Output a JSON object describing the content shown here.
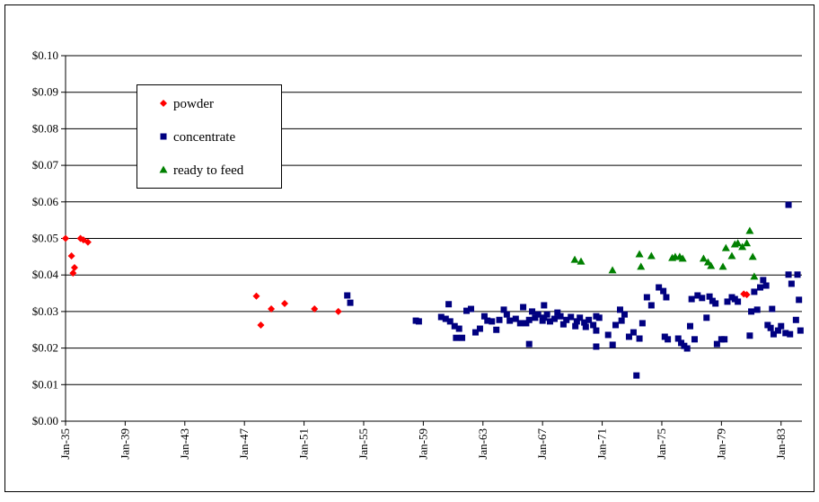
{
  "chart_data": {
    "type": "scatter",
    "xlim": [
      1935,
      1984.4
    ],
    "ylim": [
      0,
      0.1
    ],
    "xticks": [
      {
        "value": 1935,
        "label": "Jan-35"
      },
      {
        "value": 1939,
        "label": "Jan-39"
      },
      {
        "value": 1943,
        "label": "Jan-43"
      },
      {
        "value": 1947,
        "label": "Jan-47"
      },
      {
        "value": 1951,
        "label": "Jan-51"
      },
      {
        "value": 1955,
        "label": "Jan-55"
      },
      {
        "value": 1959,
        "label": "Jan-59"
      },
      {
        "value": 1963,
        "label": "Jan-63"
      },
      {
        "value": 1967,
        "label": "Jan-67"
      },
      {
        "value": 1971,
        "label": "Jan-71"
      },
      {
        "value": 1975,
        "label": "Jan-75"
      },
      {
        "value": 1979,
        "label": "Jan-79"
      },
      {
        "value": 1983,
        "label": "Jan-83"
      }
    ],
    "yticks": [
      {
        "value": 0,
        "label": "$0.00"
      },
      {
        "value": 0.01,
        "label": "$0.01"
      },
      {
        "value": 0.02,
        "label": "$0.02"
      },
      {
        "value": 0.03,
        "label": "$0.03"
      },
      {
        "value": 0.04,
        "label": "$0.04"
      },
      {
        "value": 0.05,
        "label": "$0.05"
      },
      {
        "value": 0.06,
        "label": "$0.06"
      },
      {
        "value": 0.07,
        "label": "$0.07"
      },
      {
        "value": 0.08,
        "label": "$0.08"
      },
      {
        "value": 0.09,
        "label": "$0.09"
      },
      {
        "value": 0.1,
        "label": "$0.10"
      }
    ],
    "grid": true,
    "legend": "upper left",
    "series": [
      {
        "name": "powder",
        "color": "#ff0000",
        "marker": "diamond",
        "x": [
          1935.0,
          1935.4,
          1935.6,
          1935.5,
          1936.0,
          1936.2,
          1936.5,
          1947.8,
          1948.1,
          1948.8,
          1949.7,
          1951.7,
          1953.3,
          1980.5,
          1980.7
        ],
        "values": [
          0.05,
          0.0452,
          0.042,
          0.0405,
          0.05,
          0.0496,
          0.049,
          0.0342,
          0.0263,
          0.0307,
          0.0322,
          0.0307,
          0.03,
          0.0348,
          0.0346
        ]
      },
      {
        "name": "concentrate",
        "color": "#000080",
        "marker": "square",
        "x": [
          1953.9,
          1954.1,
          1958.5,
          1958.7,
          1960.2,
          1960.5,
          1960.7,
          1960.8,
          1961.1,
          1961.2,
          1961.4,
          1961.6,
          1961.9,
          1962.2,
          1962.5,
          1962.8,
          1963.1,
          1963.3,
          1963.6,
          1963.9,
          1964.1,
          1964.4,
          1964.6,
          1964.8,
          1965.2,
          1965.5,
          1965.7,
          1965.9,
          1966.1,
          1966.3,
          1966.5,
          1966.7,
          1967.0,
          1967.1,
          1967.3,
          1967.5,
          1967.8,
          1968.0,
          1968.2,
          1968.4,
          1968.6,
          1968.9,
          1969.2,
          1969.3,
          1969.5,
          1969.8,
          1969.9,
          1970.1,
          1970.4,
          1970.6,
          1970.6,
          1966.1,
          1967.1,
          1970.6,
          1970.8,
          1971.4,
          1971.7,
          1971.9,
          1972.2,
          1972.3,
          1972.5,
          1972.8,
          1973.1,
          1973.3,
          1973.5,
          1973.7,
          1974.0,
          1974.3,
          1974.8,
          1975.1,
          1975.3,
          1975.2,
          1975.4,
          1976.1,
          1976.3,
          1976.5,
          1976.7,
          1976.9,
          1977.0,
          1977.2,
          1977.4,
          1977.7,
          1978.0,
          1978.2,
          1978.4,
          1978.6,
          1978.7,
          1979.0,
          1979.2,
          1979.4,
          1979.7,
          1979.9,
          1980.1,
          1980.9,
          1981.0,
          1981.2,
          1981.4,
          1981.6,
          1981.8,
          1982.0,
          1982.1,
          1982.3,
          1982.4,
          1982.5,
          1982.8,
          1983.0,
          1983.3,
          1983.5,
          1983.6,
          1983.5,
          1983.7,
          1984.0,
          1984.1,
          1984.2,
          1984.3
        ],
        "values": [
          0.0344,
          0.0324,
          0.0275,
          0.0273,
          0.0285,
          0.028,
          0.032,
          0.0273,
          0.026,
          0.0228,
          0.0253,
          0.0228,
          0.0302,
          0.0307,
          0.0243,
          0.0253,
          0.0287,
          0.0275,
          0.0273,
          0.025,
          0.0277,
          0.0305,
          0.0292,
          0.0275,
          0.028,
          0.0268,
          0.0312,
          0.0268,
          0.0277,
          0.03,
          0.0283,
          0.0292,
          0.0275,
          0.0283,
          0.0292,
          0.0273,
          0.028,
          0.0297,
          0.0287,
          0.0265,
          0.0277,
          0.0285,
          0.026,
          0.0273,
          0.0283,
          0.027,
          0.0258,
          0.0277,
          0.0263,
          0.0287,
          0.0248,
          0.0211,
          0.0317,
          0.0204,
          0.0283,
          0.0236,
          0.0209,
          0.0263,
          0.0305,
          0.0275,
          0.0292,
          0.0231,
          0.0243,
          0.0125,
          0.0226,
          0.0268,
          0.0339,
          0.0317,
          0.0366,
          0.0356,
          0.0339,
          0.0231,
          0.0224,
          0.0226,
          0.0214,
          0.0206,
          0.0199,
          0.026,
          0.0334,
          0.0224,
          0.0344,
          0.0337,
          0.0283,
          0.0341,
          0.0329,
          0.0322,
          0.0211,
          0.0224,
          0.0224,
          0.0327,
          0.0339,
          0.0334,
          0.0327,
          0.0234,
          0.03,
          0.0354,
          0.0305,
          0.0366,
          0.0386,
          0.0371,
          0.0263,
          0.0255,
          0.0307,
          0.0238,
          0.0248,
          0.026,
          0.0241,
          0.0401,
          0.0238,
          0.0592,
          0.0376,
          0.0277,
          0.0401,
          0.0332,
          0.0248
        ]
      },
      {
        "name": "ready to feed",
        "color": "#008000",
        "marker": "triangle",
        "x": [
          1969.16,
          1969.58,
          1971.69,
          1973.5,
          1973.6,
          1974.3,
          1975.7,
          1975.9,
          1976.2,
          1976.4,
          1977.8,
          1978.1,
          1978.3,
          1979.1,
          1979.3,
          1979.7,
          1979.9,
          1980.1,
          1980.4,
          1980.7,
          1980.9,
          1981.1,
          1981.2
        ],
        "values": [
          0.0442,
          0.0437,
          0.0413,
          0.0457,
          0.0423,
          0.0452,
          0.0447,
          0.045,
          0.045,
          0.0445,
          0.0445,
          0.0435,
          0.0425,
          0.0423,
          0.0474,
          0.0452,
          0.0484,
          0.0487,
          0.0477,
          0.0487,
          0.0521,
          0.045,
          0.0396
        ]
      }
    ]
  }
}
